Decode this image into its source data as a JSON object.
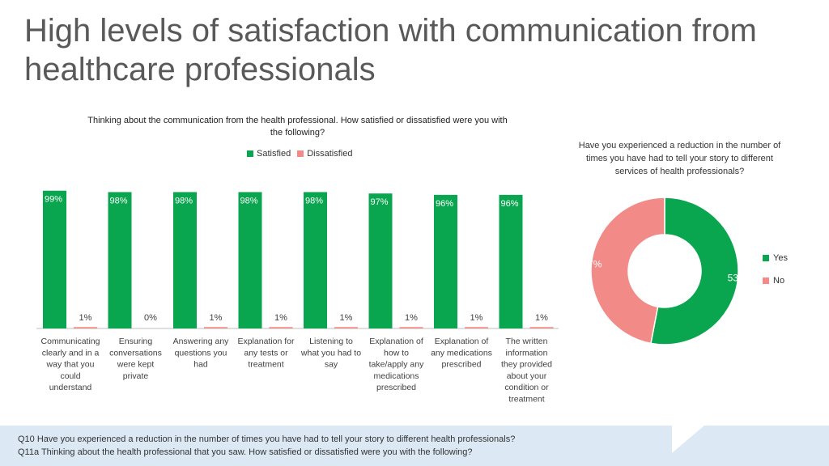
{
  "title": "High levels of satisfaction with communication from healthcare professionals",
  "bar_chart": {
    "title": "Thinking about the communication from the health professional. How satisfied or dissatisfied were you with the following?",
    "legend": [
      {
        "label": "Satisfied",
        "color": "#0aa54f"
      },
      {
        "label": "Dissatisfied",
        "color": "#f28b87"
      }
    ]
  },
  "donut_chart": {
    "title": "Have you experienced a reduction in the number of times you have had to tell your story to different services of health professionals?",
    "legend": [
      {
        "label": "Yes",
        "color": "#0aa54f"
      },
      {
        "label": "No",
        "color": "#f28b87"
      }
    ]
  },
  "chart_data": [
    {
      "type": "bar",
      "title": "Thinking about the communication from the health professional. How satisfied or dissatisfied were you with the following?",
      "categories": [
        [
          "Communicating",
          "clearly and in a",
          "way that you",
          "could",
          "understand"
        ],
        [
          "Ensuring",
          "conversations",
          "were kept",
          "private"
        ],
        [
          "Answering any",
          "questions you",
          "had"
        ],
        [
          "Explanation for",
          "any tests or",
          "treatment"
        ],
        [
          "Listening to",
          "what you had to",
          "say"
        ],
        [
          "Explanation of",
          "how to",
          "take/apply any",
          "medications",
          "prescribed"
        ],
        [
          "Explanation of",
          "any medications",
          "prescribed"
        ],
        [
          "The written",
          "information",
          "they provided",
          "about your",
          "condition or",
          "treatment"
        ]
      ],
      "series": [
        {
          "name": "Satisfied",
          "color": "#0aa54f",
          "values": [
            99,
            98,
            98,
            98,
            98,
            97,
            96,
            96
          ],
          "labels": [
            "99%",
            "98%",
            "98%",
            "98%",
            "98%",
            "97%",
            "96%",
            "96%"
          ]
        },
        {
          "name": "Dissatisfied",
          "color": "#f28b87",
          "values": [
            1,
            0,
            1,
            1,
            1,
            1,
            1,
            1
          ],
          "labels": [
            "1%",
            "0%",
            "1%",
            "1%",
            "1%",
            "1%",
            "1%",
            "1%"
          ]
        }
      ],
      "ylim": [
        0,
        100
      ],
      "grid": false,
      "legend_position": "top"
    },
    {
      "type": "pie",
      "title": "Have you experienced a reduction in the number of times you have had to tell your story to different services of health professionals?",
      "slices": [
        {
          "label": "Yes",
          "value": 53,
          "text": "53%",
          "color": "#0aa54f"
        },
        {
          "label": "No",
          "value": 47,
          "text": "47%",
          "color": "#f28b87"
        }
      ],
      "donut": true,
      "legend_position": "right"
    }
  ],
  "footer": {
    "line1": "Q10 Have you experienced a reduction in the number of times you have had to tell your story to different health professionals?",
    "line2": "Q11a Thinking about the health professional that you saw. How satisfied or dissatisfied were you with the following?"
  }
}
